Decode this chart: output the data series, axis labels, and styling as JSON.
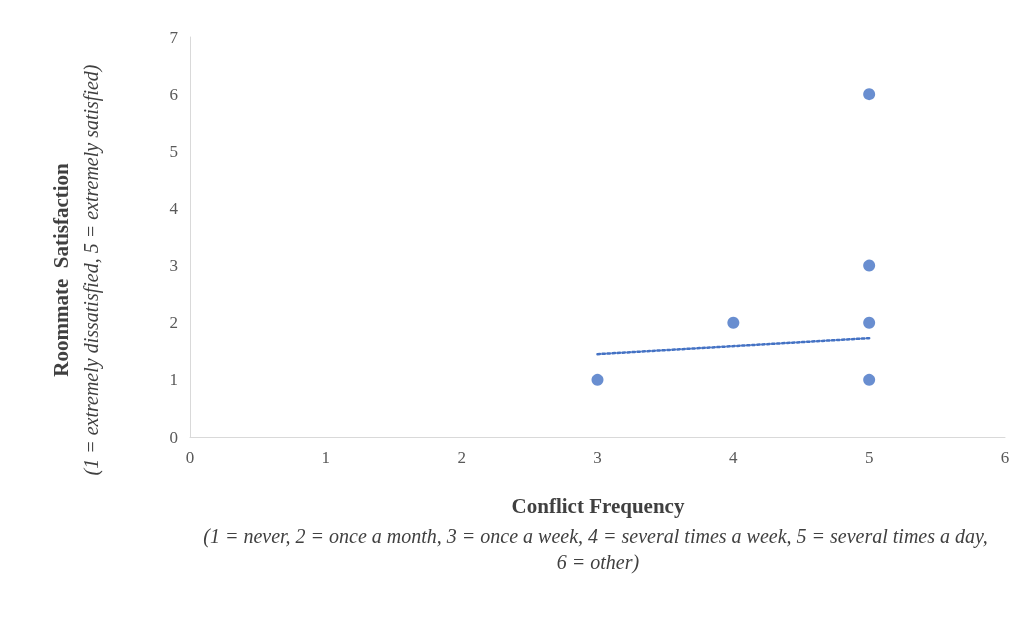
{
  "chart_data": {
    "type": "scatter",
    "xlabel": "Conflict Frequency\n(1 = never, 2 = once a month, 3 = once a week, 4 = several times a week, 5 = several times a day, 6 = other)",
    "ylabel": "Roommate  Satisfaction\n(1 = extremely dissatisfied, 5 = extremely satisfied)",
    "series": [
      {
        "color": "#4472c4",
        "marker": "circle",
        "x": [
          3,
          4,
          5,
          5,
          5,
          5
        ],
        "values": [
          1,
          2,
          6,
          3,
          2,
          1
        ]
      },
      {
        "type": "line",
        "color": "#4472c4",
        "marker": "none",
        "line_style": "dotted",
        "x": [
          3,
          5
        ],
        "values": [
          1.45,
          1.73
        ]
      }
    ],
    "xlim": [
      0,
      6
    ],
    "xticks": [
      0,
      1,
      2,
      3,
      4,
      5,
      6
    ],
    "ylim": [
      0,
      7
    ],
    "yticks": [
      0,
      1,
      2,
      3,
      4,
      5,
      6,
      7
    ],
    "grid": false
  }
}
